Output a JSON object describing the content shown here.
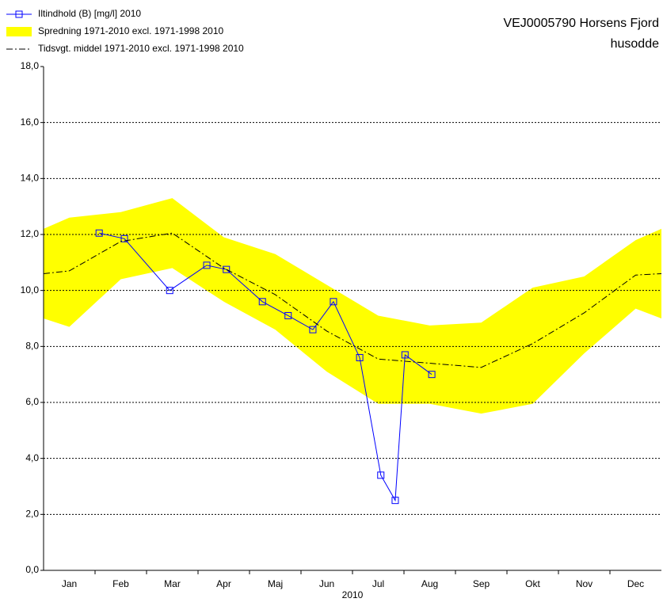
{
  "chart_data": {
    "type": "line",
    "title": [
      "VEJ0005790 Horsens Fjord",
      "husodde"
    ],
    "xlabel": "2010",
    "categories": [
      "Jan",
      "Feb",
      "Mar",
      "Apr",
      "Maj",
      "Jun",
      "Jul",
      "Aug",
      "Sep",
      "Okt",
      "Nov",
      "Dec"
    ],
    "xlim": [
      0,
      12
    ],
    "ylim": [
      0,
      18
    ],
    "yticks": [
      {
        "value": 0,
        "label": "0,0"
      },
      {
        "value": 2,
        "label": "2,0"
      },
      {
        "value": 4,
        "label": "4,0"
      },
      {
        "value": 6,
        "label": "6,0"
      },
      {
        "value": 8,
        "label": "8,0"
      },
      {
        "value": 10,
        "label": "10,0"
      },
      {
        "value": 12,
        "label": "12,0"
      },
      {
        "value": 14,
        "label": "14,0"
      },
      {
        "value": 16,
        "label": "16,0"
      },
      {
        "value": 18,
        "label": "18,0"
      }
    ],
    "grid": true,
    "series": [
      {
        "name": "Iltindhold (B) [mg/l] 2010",
        "type": "markers",
        "color": "#0000ff",
        "x": [
          1.08,
          1.57,
          2.45,
          3.17,
          3.55,
          4.25,
          4.75,
          5.23,
          5.63,
          6.14,
          6.55,
          6.83,
          7.02,
          7.54
        ],
        "values": [
          12.05,
          11.85,
          10.0,
          10.9,
          10.75,
          9.6,
          9.1,
          8.6,
          9.6,
          7.6,
          3.4,
          2.5,
          7.7,
          7.0
        ]
      },
      {
        "name": "Spredning 1971-2010 excl. 1971-1998 2010",
        "type": "band",
        "color": "#ffff00",
        "x": [
          0,
          0.5,
          1.5,
          2.5,
          3.5,
          4.5,
          5.5,
          6.5,
          7.5,
          8.5,
          9.5,
          10.5,
          11.5,
          12
        ],
        "low": [
          9.0,
          8.7,
          10.4,
          10.8,
          9.6,
          8.6,
          7.1,
          5.95,
          5.95,
          5.6,
          5.95,
          7.75,
          9.35,
          9.0
        ],
        "high": [
          12.2,
          12.6,
          12.8,
          13.3,
          11.9,
          11.3,
          10.2,
          9.1,
          8.75,
          8.85,
          10.1,
          10.5,
          11.8,
          12.2
        ]
      },
      {
        "name": "Tidsvgt. middel 1971-2010 excl. 1971-1998 2010",
        "type": "dashdot",
        "color": "#000000",
        "x": [
          0,
          0.5,
          1.5,
          2.5,
          3.5,
          4.5,
          5.5,
          6.5,
          7.5,
          8.5,
          9.5,
          10.5,
          11.5,
          12
        ],
        "values": [
          10.6,
          10.7,
          11.75,
          12.05,
          10.8,
          9.85,
          8.55,
          7.55,
          7.4,
          7.25,
          8.1,
          9.2,
          10.55,
          10.6
        ]
      }
    ]
  }
}
